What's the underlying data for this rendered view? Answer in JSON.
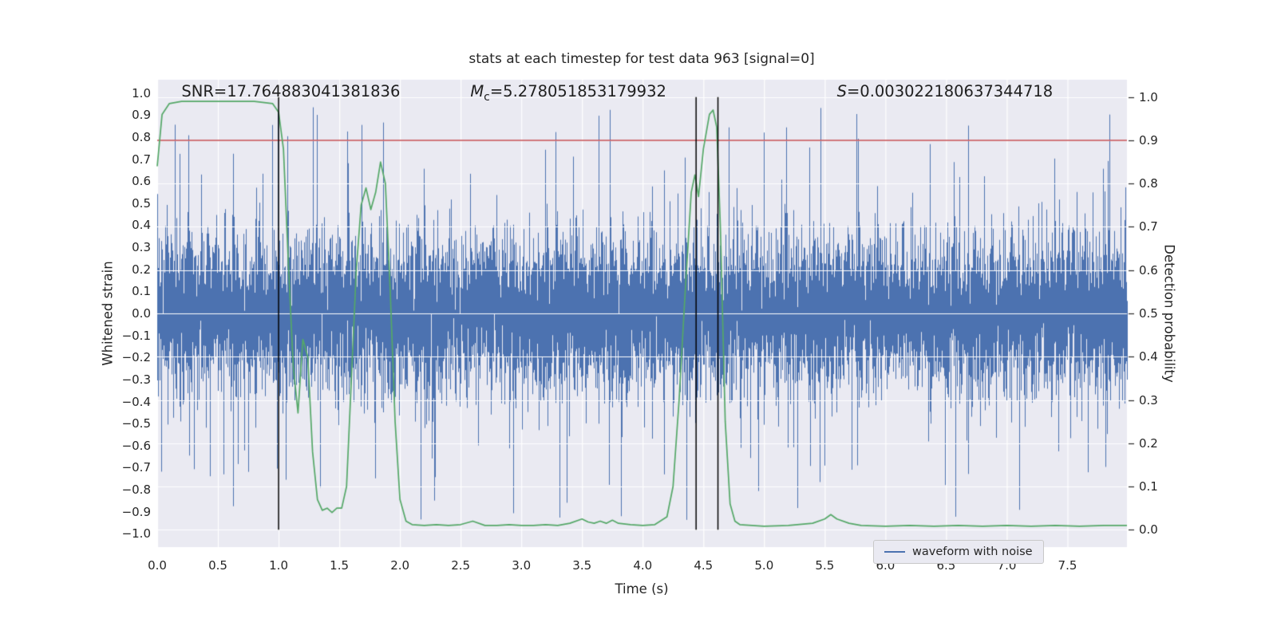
{
  "figure": {
    "background": "#ffffff",
    "axes_background": "#eaeaf2",
    "grid_color": "#ffffff",
    "text_color": "#262626",
    "tick_color": "#262626"
  },
  "chart_data": {
    "type": "line",
    "title": "stats at each timestep for test data 963 [signal=0]",
    "xlabel": "Time (s)",
    "ylabel_left": "Whitened strain",
    "ylabel_right": "Detection probability",
    "xlim": [
      0,
      7.99
    ],
    "ylim_left": [
      -1.06,
      1.06
    ],
    "ylim_right": [
      -0.04,
      1.04
    ],
    "xticks": [
      0.0,
      0.5,
      1.0,
      1.5,
      2.0,
      2.5,
      3.0,
      3.5,
      4.0,
      4.5,
      5.0,
      5.5,
      6.0,
      6.5,
      7.0,
      7.5
    ],
    "yticks_left": [
      -1.0,
      -0.9,
      -0.8,
      -0.7,
      -0.6,
      -0.5,
      -0.4,
      -0.3,
      -0.2,
      -0.1,
      0.0,
      0.1,
      0.2,
      0.3,
      0.4,
      0.5,
      0.6,
      0.7,
      0.8,
      0.9,
      1.0
    ],
    "yticks_right": [
      0.0,
      0.1,
      0.2,
      0.3,
      0.4,
      0.5,
      0.6,
      0.7,
      0.8,
      0.9,
      1.0
    ],
    "annotations": {
      "snr": {
        "text": "SNR=17.764883041381836",
        "x": 0.2
      },
      "mc": {
        "prefix": "M",
        "sub": "c",
        "text": "=5.278051853179932",
        "x": 2.58
      },
      "s": {
        "prefix": "S",
        "text": "=0.003022180637344718",
        "x": 5.6
      }
    },
    "threshold_line": {
      "value": 0.9,
      "axis": "right",
      "color": "#c44e52"
    },
    "vlines": {
      "x": [
        1.0,
        4.44,
        4.62
      ],
      "span": [
        0.0,
        1.0
      ],
      "color": "#000000"
    },
    "detection_probability": {
      "color": "#55a868",
      "axis": "right",
      "points": [
        [
          0.0,
          0.84
        ],
        [
          0.04,
          0.96
        ],
        [
          0.1,
          0.985
        ],
        [
          0.2,
          0.99
        ],
        [
          0.4,
          0.99
        ],
        [
          0.6,
          0.99
        ],
        [
          0.8,
          0.99
        ],
        [
          0.95,
          0.985
        ],
        [
          1.0,
          0.965
        ],
        [
          1.04,
          0.88
        ],
        [
          1.08,
          0.62
        ],
        [
          1.12,
          0.38
        ],
        [
          1.16,
          0.27
        ],
        [
          1.2,
          0.44
        ],
        [
          1.24,
          0.4
        ],
        [
          1.28,
          0.18
        ],
        [
          1.32,
          0.07
        ],
        [
          1.36,
          0.045
        ],
        [
          1.4,
          0.05
        ],
        [
          1.44,
          0.04
        ],
        [
          1.48,
          0.05
        ],
        [
          1.52,
          0.05
        ],
        [
          1.56,
          0.1
        ],
        [
          1.6,
          0.35
        ],
        [
          1.64,
          0.6
        ],
        [
          1.68,
          0.75
        ],
        [
          1.72,
          0.79
        ],
        [
          1.76,
          0.74
        ],
        [
          1.8,
          0.78
        ],
        [
          1.84,
          0.85
        ],
        [
          1.88,
          0.8
        ],
        [
          1.92,
          0.55
        ],
        [
          1.96,
          0.25
        ],
        [
          2.0,
          0.07
        ],
        [
          2.05,
          0.02
        ],
        [
          2.1,
          0.012
        ],
        [
          2.2,
          0.01
        ],
        [
          2.3,
          0.012
        ],
        [
          2.4,
          0.01
        ],
        [
          2.5,
          0.012
        ],
        [
          2.6,
          0.02
        ],
        [
          2.7,
          0.01
        ],
        [
          2.8,
          0.01
        ],
        [
          2.9,
          0.012
        ],
        [
          3.0,
          0.01
        ],
        [
          3.1,
          0.01
        ],
        [
          3.2,
          0.012
        ],
        [
          3.3,
          0.01
        ],
        [
          3.4,
          0.015
        ],
        [
          3.5,
          0.025
        ],
        [
          3.55,
          0.018
        ],
        [
          3.6,
          0.015
        ],
        [
          3.65,
          0.02
        ],
        [
          3.7,
          0.015
        ],
        [
          3.75,
          0.022
        ],
        [
          3.8,
          0.015
        ],
        [
          3.9,
          0.012
        ],
        [
          4.0,
          0.01
        ],
        [
          4.1,
          0.012
        ],
        [
          4.2,
          0.03
        ],
        [
          4.25,
          0.1
        ],
        [
          4.3,
          0.3
        ],
        [
          4.35,
          0.55
        ],
        [
          4.4,
          0.78
        ],
        [
          4.43,
          0.82
        ],
        [
          4.46,
          0.77
        ],
        [
          4.5,
          0.88
        ],
        [
          4.55,
          0.96
        ],
        [
          4.58,
          0.97
        ],
        [
          4.61,
          0.93
        ],
        [
          4.64,
          0.7
        ],
        [
          4.68,
          0.25
        ],
        [
          4.72,
          0.06
        ],
        [
          4.76,
          0.02
        ],
        [
          4.8,
          0.012
        ],
        [
          5.0,
          0.008
        ],
        [
          5.2,
          0.01
        ],
        [
          5.4,
          0.015
        ],
        [
          5.5,
          0.025
        ],
        [
          5.55,
          0.035
        ],
        [
          5.6,
          0.025
        ],
        [
          5.7,
          0.015
        ],
        [
          5.8,
          0.01
        ],
        [
          6.0,
          0.008
        ],
        [
          6.2,
          0.01
        ],
        [
          6.4,
          0.008
        ],
        [
          6.6,
          0.01
        ],
        [
          6.8,
          0.008
        ],
        [
          7.0,
          0.01
        ],
        [
          7.2,
          0.008
        ],
        [
          7.4,
          0.01
        ],
        [
          7.6,
          0.008
        ],
        [
          7.8,
          0.01
        ],
        [
          7.99,
          0.01
        ]
      ]
    },
    "noise_model": {
      "label": "waveform with noise",
      "color": "#4c72b0",
      "axis": "left",
      "seed": 42,
      "sigma": 0.165,
      "samples_per_column": 9,
      "spike_probability": 0.07,
      "spike_base": 0.4,
      "spike_extra": 0.55,
      "spike_shape": 1.8,
      "clip": 0.95
    },
    "legend": {
      "position": "lower right",
      "entries": [
        {
          "label": "waveform with noise",
          "color": "#4c72b0"
        }
      ]
    }
  }
}
